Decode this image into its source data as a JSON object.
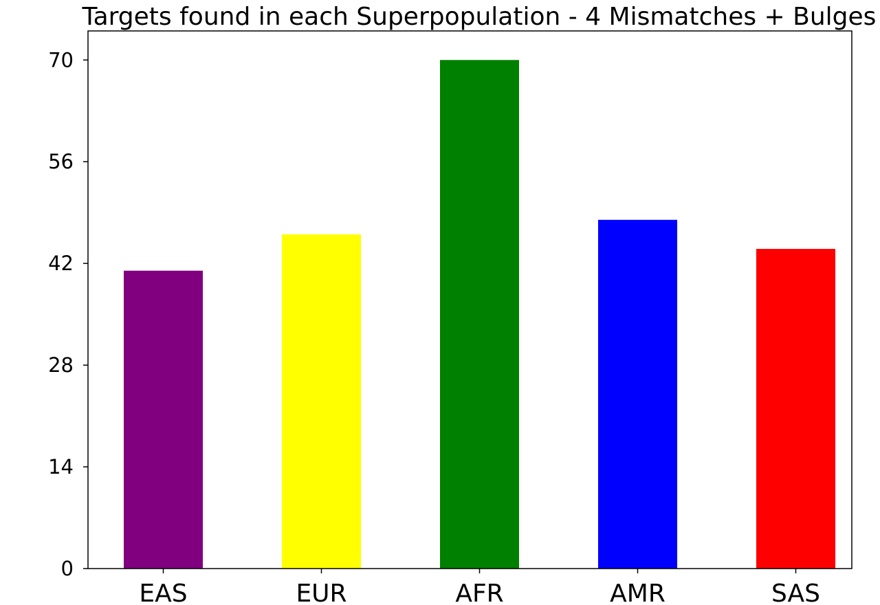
{
  "chart_data": {
    "type": "bar",
    "title": "Targets found in each Superpopulation - 4 Mismatches + Bulges",
    "xlabel": "",
    "ylabel": "",
    "categories": [
      "EAS",
      "EUR",
      "AFR",
      "AMR",
      "SAS"
    ],
    "values": [
      41,
      46,
      70,
      48,
      44
    ],
    "colors": [
      "#800080",
      "#FFFF00",
      "#008000",
      "#0000FF",
      "#FF0000"
    ],
    "yticks": [
      0,
      14,
      28,
      42,
      56,
      70
    ],
    "ylim": [
      0,
      74
    ],
    "grid": false,
    "legend": "none"
  }
}
